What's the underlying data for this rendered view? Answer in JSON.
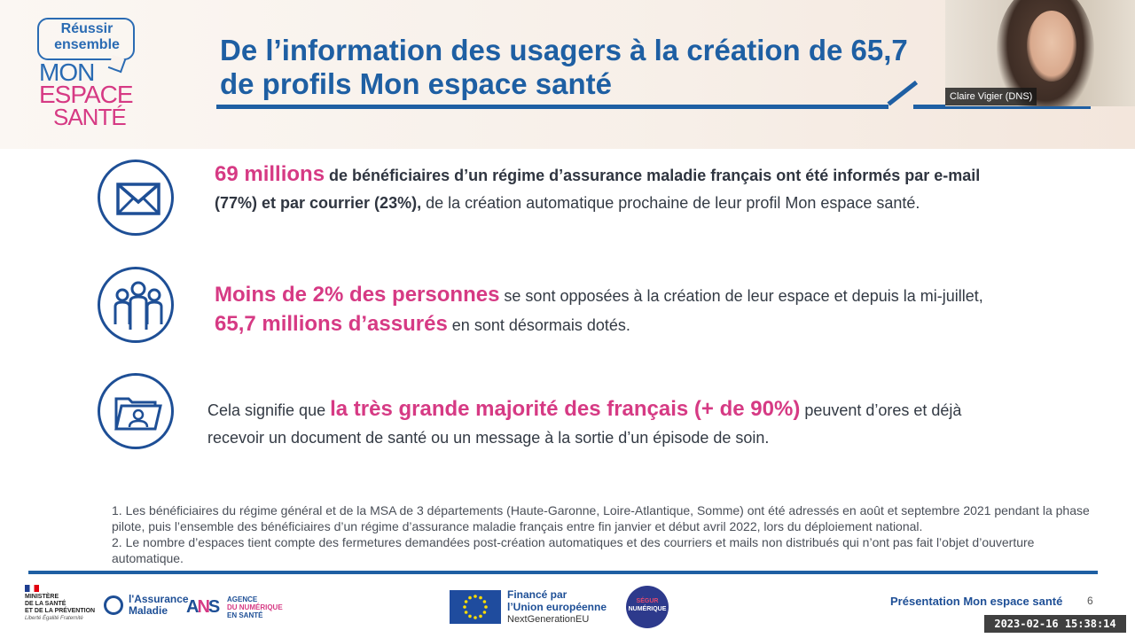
{
  "logo": {
    "reussir": "Réussir ensemble",
    "mon": "MON",
    "espace": "ESPACE",
    "sante": "SANTÉ"
  },
  "slide": {
    "title_line1": "De l’information des usagers à la création de 65,7",
    "title_line2": "de profils Mon espace santé"
  },
  "webcam": {
    "participant_name": "Claire Vigier (DNS)"
  },
  "items": [
    {
      "icon": "envelope-icon",
      "highlight": "69 millions",
      "bold": " de bénéficiaires d’un régime d’assurance maladie français ont été informés par e-mail (77%) et par courrier (23%),",
      "text": " de la création automatique prochaine de leur profil Mon espace santé."
    },
    {
      "icon": "people-icon",
      "highlight1": "Moins de 2% des personnes",
      "text1": " se sont opposées à la création de leur espace et depuis la mi-juillet, ",
      "highlight2": "65,7 millions d’assurés",
      "text2": " en sont désormais dotés."
    },
    {
      "icon": "folder-user-icon",
      "text1": "Cela signifie que ",
      "highlight": "la très grande majorité des français (+ de 90%)",
      "text2": " peuvent d’ores et déjà recevoir un document de santé ou un message à la sortie d’un épisode de soin."
    }
  ],
  "footnotes": [
    "1. Les bénéficiaires du régime général et de la MSA de 3 départements (Haute-Garonne, Loire-Atlantique, Somme) ont été adressés en août et septembre 2021 pendant la phase pilote, puis l’ensemble des bénéficiaires d’un régime d’assurance maladie français entre fin janvier et début avril 2022, lors du déploiement national.",
    "2. Le nombre d’espaces tient compte des fermetures demandées post-création automatiques et des courriers et mails non distribués qui n’ont pas fait l’objet d’ouverture automatique."
  ],
  "footer": {
    "ministere_lines": [
      "MINISTÈRE",
      "DE LA SANTÉ",
      "ET DE LA PRÉVENTION"
    ],
    "devise": "Liberté Égalité Fraternité",
    "assurance_line1": "l'Assurance",
    "assurance_line2": "Maladie",
    "ans_line1": "AGENCE",
    "ans_line2": "DU NUMÉRIQUE",
    "ans_line3": "EN SANTÉ",
    "eu_line1": "Financé par",
    "eu_line2": "l’Union européenne",
    "eu_line3": "NextGenerationEU",
    "segur_line1": "SÉGUR",
    "segur_line2": "NUMÉRIQUE",
    "presentation": "Présentation Mon espace santé",
    "page_number": "6"
  },
  "recording": {
    "timestamp": "2023-02-16  15:38:14"
  },
  "colors": {
    "primary_blue": "#1e5fa3",
    "accent_pink": "#d63a84"
  }
}
